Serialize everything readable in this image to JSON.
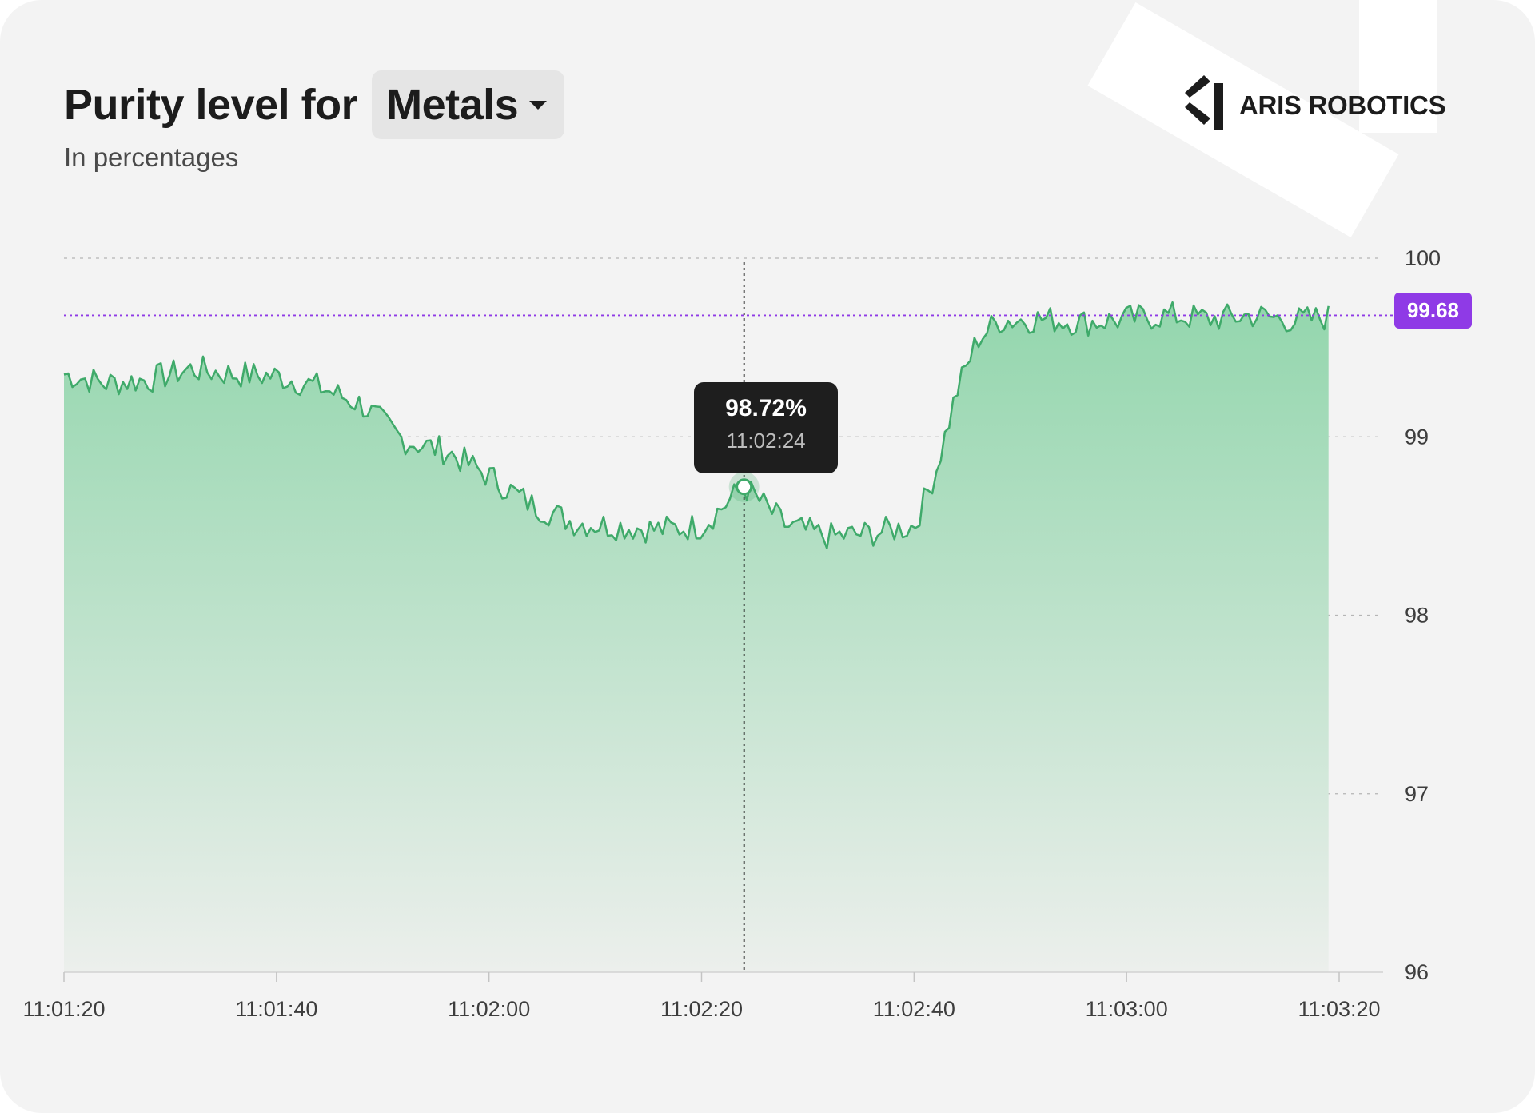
{
  "header": {
    "title": "Purity level for",
    "selector_value": "Metals",
    "subtitle": "In percentages"
  },
  "brand": {
    "name": "ARIS ROBOTICS"
  },
  "tooltip": {
    "value": "98.72%",
    "time": "11:02:24"
  },
  "reference": {
    "label": "99.68",
    "value": 99.68
  },
  "colors": {
    "line": "#3faa6a",
    "area_top": "#93d6ad",
    "area_bottom": "#ecefec",
    "reference": "#8f3ae6",
    "grid": "#b5b5b5"
  },
  "chart_data": {
    "type": "area",
    "title": "Purity level for Metals",
    "subtitle": "In percentages",
    "xlabel": "",
    "ylabel": "",
    "ylim": [
      96,
      100
    ],
    "y_ticks": [
      "100",
      "99",
      "98",
      "97",
      "96"
    ],
    "x_ticks": [
      "11:01:20",
      "11:01:40",
      "11:02:00",
      "11:02:20",
      "11:02:40",
      "11:03:00",
      "11:03:20"
    ],
    "x_range": [
      "11:01:20",
      "11:03:20"
    ],
    "grid": "horizontal dashed",
    "y_axis_position": "right",
    "series": [
      {
        "x": [
          "11:01:20",
          "11:01:24",
          "11:01:28",
          "11:01:32",
          "11:01:36",
          "11:01:40",
          "11:01:44",
          "11:01:48",
          "11:01:52",
          "11:01:56",
          "11:02:00",
          "11:02:04",
          "11:02:08",
          "11:02:12",
          "11:02:16",
          "11:02:20",
          "11:02:24",
          "11:02:28",
          "11:02:32",
          "11:02:36",
          "11:02:40",
          "11:02:42",
          "11:02:44",
          "11:02:46",
          "11:02:48",
          "11:02:52",
          "11:02:56",
          "11:03:00",
          "11:03:04",
          "11:03:08",
          "11:03:12",
          "11:03:16",
          "11:03:19"
        ],
        "values": [
          99.35,
          99.3,
          99.32,
          99.38,
          99.35,
          99.34,
          99.28,
          99.18,
          98.98,
          98.92,
          98.78,
          98.62,
          98.52,
          98.5,
          98.48,
          98.5,
          98.72,
          98.5,
          98.44,
          98.46,
          98.5,
          98.8,
          99.25,
          99.55,
          99.65,
          99.66,
          99.64,
          99.66,
          99.68,
          99.66,
          99.68,
          99.65,
          99.67
        ]
      }
    ],
    "highlight": {
      "x": "11:02:24",
      "y": 98.72
    },
    "reference_line": 99.68
  }
}
